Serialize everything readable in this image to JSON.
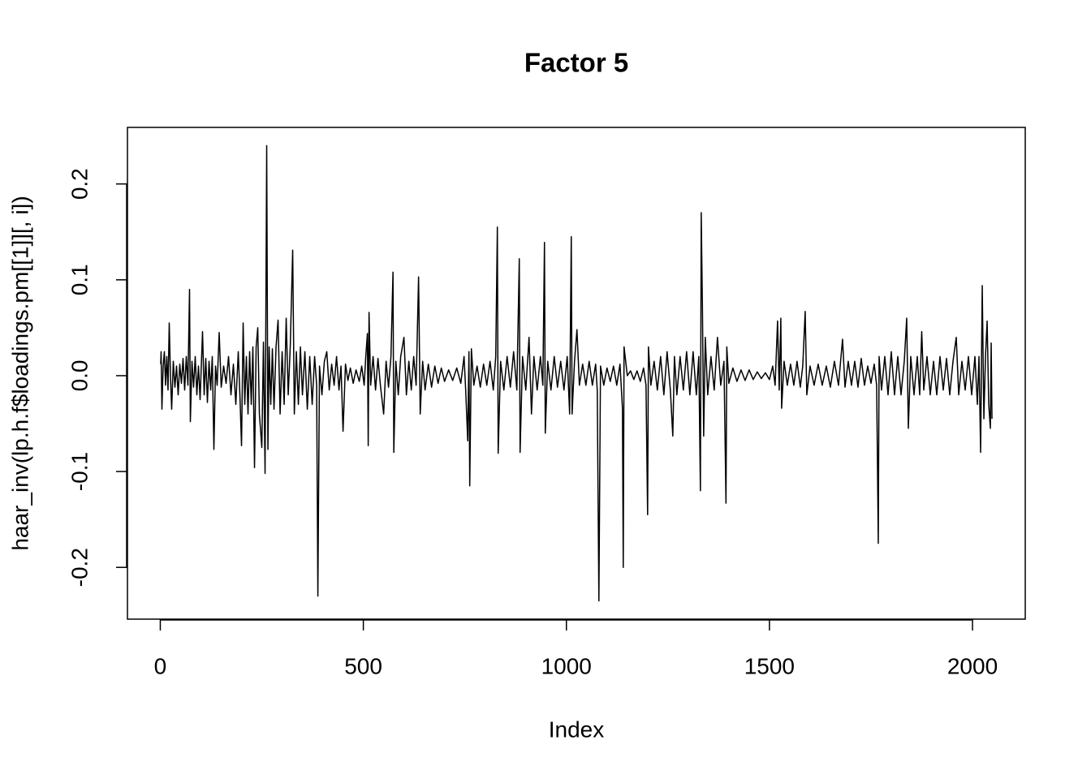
{
  "chart_data": {
    "type": "line",
    "title": "Factor 5",
    "x_label": "Index",
    "y_label": "haar_inv(lp.h.f$loadings.pm[[1]][, i])",
    "xlim": [
      -80.9,
      2129.9
    ],
    "ylim": [
      -0.254,
      0.259
    ],
    "xticks": [
      0,
      500,
      1000,
      1500,
      2000
    ],
    "yticks": [
      -0.2,
      -0.1,
      {
        "value": 0,
        "label": "0.0"
      },
      0.1,
      0.2
    ],
    "grid": false,
    "series": [
      {
        "color": "#000000",
        "x": [
          1,
          2,
          4,
          7,
          10,
          13,
          16,
          19,
          22,
          25,
          28,
          32,
          36,
          40,
          44,
          48,
          52,
          56,
          60,
          64,
          68,
          72,
          74,
          78,
          82,
          86,
          90,
          94,
          98,
          104,
          108,
          112,
          116,
          120,
          124,
          128,
          132,
          136,
          140,
          145,
          150,
          156,
          162,
          168,
          174,
          180,
          186,
          192,
          196,
          200,
          204,
          208,
          212,
          216,
          220,
          224,
          228,
          232,
          236,
          240,
          244,
          250,
          254,
          258,
          262,
          265,
          268,
          272,
          276,
          280,
          285,
          290,
          295,
          300,
          305,
          310,
          315,
          320,
          326,
          330,
          335,
          340,
          345,
          350,
          356,
          362,
          368,
          374,
          380,
          385,
          388,
          392,
          398,
          404,
          410,
          416,
          422,
          428,
          434,
          440,
          445,
          450,
          456,
          462,
          468,
          475,
          482,
          490,
          496,
          502,
          506,
          510,
          512,
          514,
          518,
          524,
          530,
          536,
          542,
          550,
          556,
          562,
          568,
          573,
          575,
          580,
          586,
          592,
          600,
          606,
          612,
          618,
          624,
          630,
          636,
          640,
          646,
          652,
          660,
          668,
          676,
          684,
          692,
          700,
          710,
          720,
          730,
          740,
          748,
          752,
          757,
          760,
          762,
          766,
          772,
          780,
          788,
          796,
          804,
          812,
          820,
          826,
          830,
          832,
          838,
          846,
          854,
          862,
          870,
          878,
          884,
          886,
          892,
          900,
          908,
          914,
          920,
          928,
          936,
          942,
          946,
          948,
          954,
          962,
          970,
          978,
          986,
          994,
          1002,
          1008,
          1012,
          1014,
          1020,
          1026,
          1032,
          1040,
          1048,
          1056,
          1064,
          1072,
          1076,
          1080,
          1084,
          1092,
          1100,
          1108,
          1116,
          1124,
          1132,
          1138,
          1140,
          1142,
          1150,
          1158,
          1166,
          1174,
          1182,
          1190,
          1196,
          1200,
          1202,
          1208,
          1216,
          1224,
          1232,
          1240,
          1248,
          1256,
          1262,
          1266,
          1272,
          1280,
          1288,
          1296,
          1304,
          1312,
          1320,
          1326,
          1330,
          1332,
          1335,
          1338,
          1342,
          1348,
          1356,
          1364,
          1372,
          1380,
          1388,
          1393,
          1395,
          1400,
          1410,
          1420,
          1430,
          1440,
          1450,
          1460,
          1470,
          1480,
          1490,
          1500,
          1508,
          1514,
          1520,
          1524,
          1528,
          1530,
          1536,
          1544,
          1552,
          1560,
          1568,
          1576,
          1582,
          1588,
          1592,
          1600,
          1610,
          1620,
          1630,
          1640,
          1650,
          1660,
          1670,
          1680,
          1686,
          1694,
          1702,
          1710,
          1718,
          1726,
          1734,
          1742,
          1750,
          1758,
          1764,
          1768,
          1770,
          1776,
          1784,
          1792,
          1800,
          1808,
          1816,
          1824,
          1832,
          1838,
          1842,
          1848,
          1856,
          1864,
          1870,
          1875,
          1880,
          1888,
          1896,
          1904,
          1912,
          1920,
          1928,
          1936,
          1944,
          1952,
          1960,
          1966,
          1974,
          1982,
          1990,
          1998,
          2006,
          2012,
          2016,
          2020,
          2024,
          2028,
          2032,
          2036,
          2040,
          2044,
          2046,
          2048
        ],
        "values": [
          0.012,
          0.025,
          -0.035,
          0.01,
          0.025,
          -0.01,
          0.02,
          -0.015,
          0.055,
          0.0,
          -0.035,
          0.015,
          -0.012,
          0.01,
          -0.02,
          0.012,
          -0.008,
          0.018,
          -0.015,
          0.02,
          -0.01,
          0.09,
          -0.048,
          0.015,
          -0.012,
          0.02,
          -0.02,
          0.01,
          -0.025,
          0.046,
          -0.02,
          0.018,
          -0.028,
          0.015,
          -0.015,
          0.02,
          -0.077,
          0.01,
          -0.01,
          0.045,
          -0.012,
          0.01,
          -0.008,
          0.02,
          -0.02,
          0.012,
          -0.03,
          0.025,
          -0.02,
          -0.073,
          0.055,
          -0.03,
          0.02,
          -0.04,
          0.025,
          -0.03,
          0.03,
          -0.096,
          0.03,
          0.05,
          -0.04,
          -0.075,
          0.035,
          -0.102,
          0.24,
          -0.077,
          0.03,
          -0.03,
          0.028,
          -0.035,
          0.03,
          0.058,
          -0.04,
          0.025,
          -0.03,
          0.06,
          -0.02,
          0.03,
          0.131,
          -0.04,
          0.025,
          -0.03,
          0.03,
          -0.02,
          0.025,
          -0.035,
          0.02,
          -0.03,
          0.02,
          -0.01,
          -0.23,
          0.01,
          -0.02,
          0.015,
          0.025,
          -0.015,
          0.012,
          -0.01,
          0.02,
          -0.015,
          0.01,
          -0.058,
          0.012,
          -0.005,
          0.008,
          -0.008,
          0.006,
          -0.006,
          0.01,
          -0.01,
          0.02,
          0.044,
          -0.073,
          0.066,
          -0.01,
          0.02,
          -0.015,
          0.018,
          -0.01,
          -0.04,
          0.015,
          -0.012,
          0.02,
          0.108,
          -0.08,
          0.015,
          -0.02,
          0.02,
          0.04,
          -0.02,
          0.015,
          -0.015,
          0.02,
          -0.01,
          0.103,
          -0.04,
          0.015,
          -0.015,
          0.012,
          -0.012,
          0.01,
          -0.008,
          0.008,
          -0.006,
          0.006,
          -0.005,
          0.008,
          -0.008,
          0.02,
          -0.015,
          -0.068,
          0.025,
          -0.115,
          0.028,
          -0.01,
          0.01,
          -0.012,
          0.012,
          -0.01,
          0.015,
          -0.015,
          0.02,
          0.155,
          -0.081,
          0.015,
          -0.015,
          0.02,
          -0.012,
          0.025,
          -0.015,
          0.122,
          -0.08,
          0.02,
          -0.015,
          0.04,
          -0.04,
          0.02,
          -0.015,
          0.02,
          -0.01,
          0.139,
          -0.06,
          0.015,
          -0.015,
          0.02,
          -0.012,
          0.015,
          -0.015,
          0.02,
          -0.04,
          0.145,
          -0.04,
          0.015,
          0.048,
          -0.01,
          0.012,
          -0.01,
          0.015,
          -0.01,
          0.012,
          -0.015,
          -0.235,
          0.01,
          -0.01,
          0.008,
          -0.006,
          0.01,
          -0.01,
          0.012,
          -0.034,
          -0.2,
          0.03,
          0.0,
          0.005,
          -0.004,
          0.005,
          -0.006,
          0.008,
          -0.01,
          -0.145,
          0.03,
          -0.01,
          0.015,
          -0.015,
          0.02,
          -0.02,
          0.025,
          -0.015,
          -0.063,
          0.02,
          -0.02,
          0.02,
          -0.015,
          0.025,
          -0.02,
          0.025,
          -0.02,
          0.02,
          -0.12,
          0.17,
          0.07,
          -0.063,
          0.04,
          -0.02,
          0.02,
          -0.015,
          0.04,
          -0.01,
          0.015,
          -0.133,
          0.03,
          -0.008,
          0.008,
          -0.006,
          0.006,
          -0.005,
          0.006,
          -0.004,
          0.004,
          -0.003,
          0.003,
          -0.004,
          0.01,
          -0.01,
          0.057,
          -0.015,
          0.06,
          -0.034,
          0.015,
          -0.01,
          0.012,
          -0.01,
          0.015,
          -0.012,
          0.01,
          0.067,
          -0.02,
          0.01,
          -0.01,
          0.012,
          -0.01,
          0.01,
          -0.012,
          0.015,
          -0.01,
          0.038,
          -0.012,
          0.015,
          -0.01,
          0.015,
          -0.012,
          0.018,
          -0.01,
          0.01,
          -0.008,
          0.012,
          -0.01,
          -0.175,
          0.02,
          -0.015,
          0.02,
          -0.02,
          0.025,
          -0.02,
          0.02,
          -0.02,
          0.015,
          0.06,
          -0.055,
          0.02,
          -0.02,
          0.02,
          -0.02,
          0.046,
          -0.015,
          0.02,
          -0.02,
          0.015,
          -0.02,
          0.02,
          -0.015,
          0.018,
          -0.02,
          0.015,
          0.04,
          -0.02,
          0.015,
          -0.015,
          0.02,
          -0.02,
          0.02,
          -0.03,
          0.02,
          -0.08,
          0.094,
          -0.045,
          0.02,
          0.057,
          -0.03,
          -0.055,
          0.034,
          -0.045
        ]
      }
    ]
  }
}
